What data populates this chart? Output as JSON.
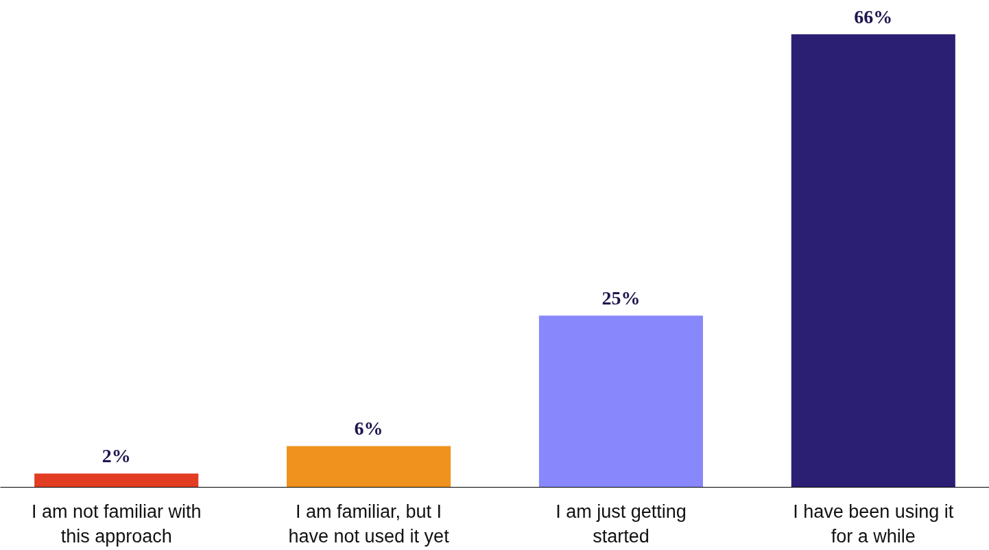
{
  "chart_data": {
    "type": "bar",
    "categories": [
      "I am not familiar with this approach",
      "I am familiar, but I have not used it yet",
      "I am just getting started",
      "I have been using it for a while"
    ],
    "values": [
      2,
      6,
      25,
      66
    ],
    "colors": [
      "#e23d22",
      "#f0921e",
      "#8888fc",
      "#2b1f73"
    ],
    "value_labels": [
      "2%",
      "6%",
      "25%",
      "66%"
    ],
    "grid": false
  }
}
